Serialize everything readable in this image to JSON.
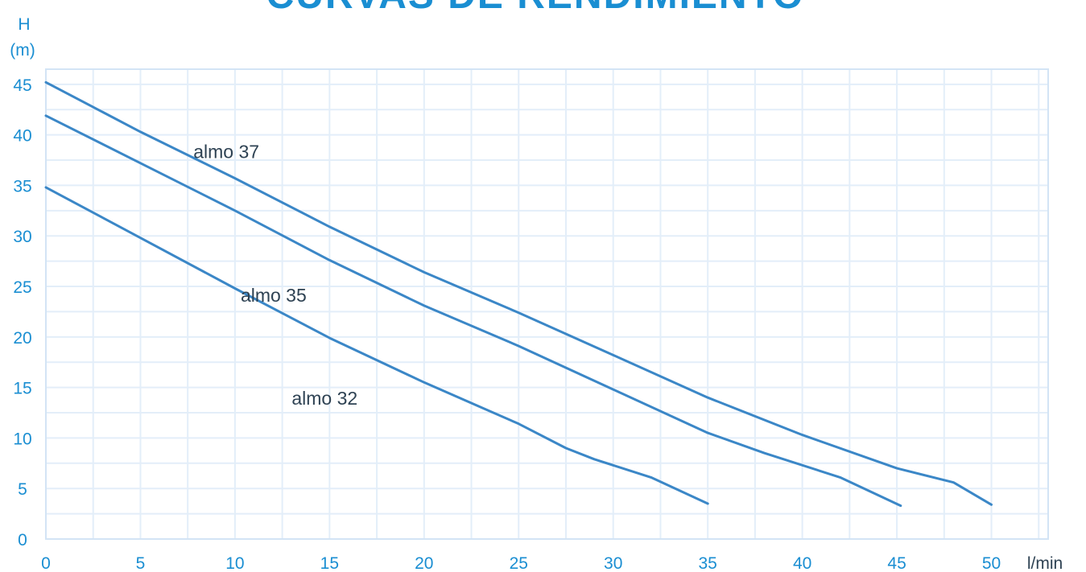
{
  "colors": {
    "title": "#1a8ed2",
    "tick": "#1a8ed2",
    "grid": "#e3eef9",
    "grid_border": "#d3e4f5",
    "curve": "#3b87c7",
    "series_label": "#2e4253"
  },
  "chart_data": {
    "type": "line",
    "title": "CURVAS DE RENDIMIENTO",
    "ylabel": "H",
    "ylabel_unit": "(m)",
    "xlabel": "l/min",
    "xlim": [
      0,
      53
    ],
    "ylim": [
      0,
      46.5
    ],
    "x_ticks": [
      0,
      5,
      10,
      15,
      20,
      25,
      30,
      35,
      40,
      45,
      50
    ],
    "y_ticks": [
      0,
      5,
      10,
      15,
      20,
      25,
      30,
      35,
      40,
      45
    ],
    "grid": true,
    "legend": "inline labels",
    "series": [
      {
        "name": "almo 37",
        "x": [
          0,
          5,
          10,
          15,
          20,
          25,
          30,
          35,
          40,
          45,
          48,
          50
        ],
        "y": [
          45.2,
          40.3,
          35.7,
          30.9,
          26.4,
          22.4,
          18.2,
          14.0,
          10.3,
          7.0,
          5.6,
          3.4
        ]
      },
      {
        "name": "almo 35",
        "x": [
          0,
          5,
          10,
          15,
          20,
          25,
          30,
          35,
          38,
          42,
          45.2
        ],
        "y": [
          41.9,
          37.2,
          32.5,
          27.6,
          23.1,
          19.1,
          14.8,
          10.5,
          8.5,
          6.1,
          3.3
        ]
      },
      {
        "name": "almo 32",
        "x": [
          0,
          5,
          10,
          15,
          20,
          25,
          27.5,
          29,
          32,
          35
        ],
        "y": [
          34.8,
          29.8,
          24.8,
          19.9,
          15.5,
          11.4,
          9.0,
          7.9,
          6.1,
          3.5
        ]
      }
    ],
    "series_labels": [
      {
        "text": "almo 37",
        "x": 7.8,
        "y": 37.7
      },
      {
        "text": "almo 35",
        "x": 10.3,
        "y": 23.5
      },
      {
        "text": "almo 32",
        "x": 13.0,
        "y": 13.3
      }
    ]
  }
}
